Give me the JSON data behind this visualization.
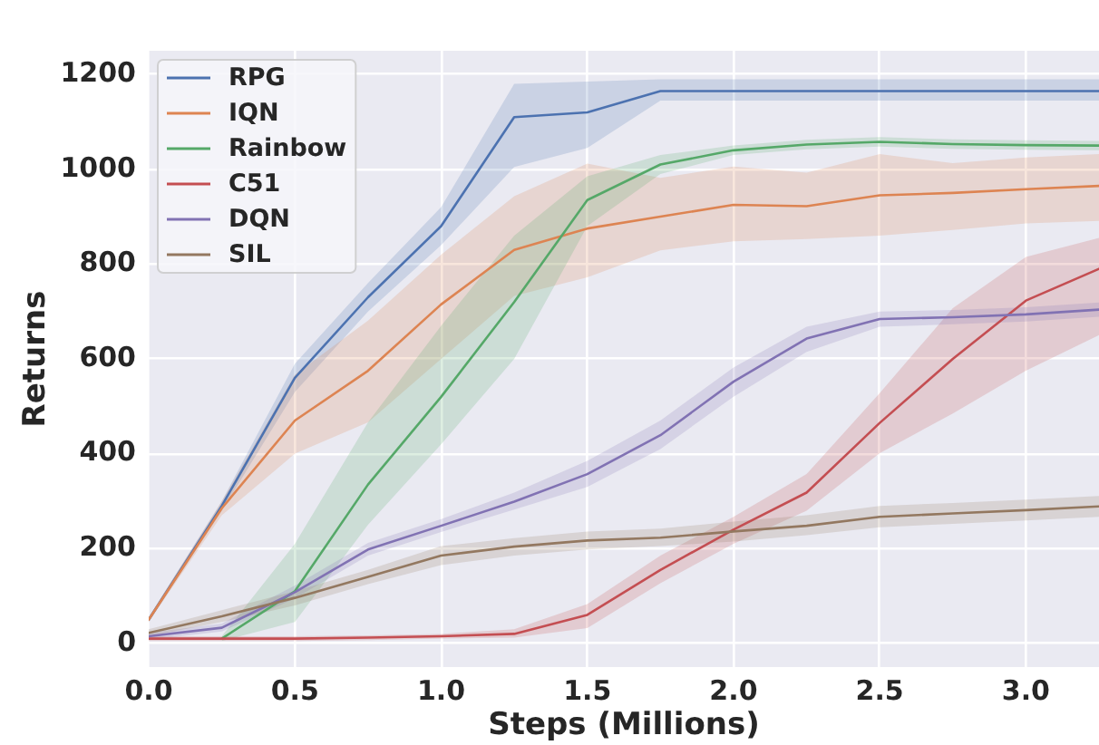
{
  "chart_data": {
    "type": "line",
    "xlabel": "Steps (Millions)",
    "ylabel": "Returns",
    "x": [
      0,
      0.25,
      0.5,
      0.75,
      1,
      1.25,
      1.5,
      1.75,
      2,
      2.25,
      2.5,
      2.75,
      3,
      3.25
    ],
    "xlim": [
      0,
      3.25
    ],
    "xticks": [
      {
        "value": 0,
        "label": "0.0"
      },
      {
        "value": 0.5,
        "label": "0.5"
      },
      {
        "value": 1,
        "label": "1.0"
      },
      {
        "value": 1.5,
        "label": "1.5"
      },
      {
        "value": 2,
        "label": "2.0"
      },
      {
        "value": 2.5,
        "label": "2.5"
      },
      {
        "value": 3,
        "label": "3.0"
      }
    ],
    "ylim": [
      -50,
      1250
    ],
    "yticks": [
      0,
      200,
      400,
      600,
      800,
      1000,
      1200
    ],
    "grid": true,
    "legend": "top left",
    "series": [
      {
        "name": "RPG",
        "color": "#4c72b0",
        "values": [
          50,
          290,
          560,
          730,
          880,
          1110,
          1120,
          1165,
          1165,
          1165,
          1165,
          1165,
          1165,
          1165
        ],
        "lower": [
          45,
          280,
          530,
          700,
          840,
          1005,
          1045,
          1145,
          1145,
          1145,
          1145,
          1145,
          1145,
          1145
        ],
        "upper": [
          55,
          300,
          590,
          760,
          920,
          1180,
          1185,
          1190,
          1190,
          1190,
          1190,
          1190,
          1190,
          1190
        ]
      },
      {
        "name": "IQN",
        "color": "#dd8452",
        "values": [
          50,
          285,
          470,
          575,
          715,
          830,
          875,
          900,
          925,
          922,
          945,
          950,
          958,
          965
        ],
        "lower": [
          45,
          270,
          400,
          466,
          600,
          733,
          772,
          829,
          848,
          853,
          860,
          872,
          886,
          891
        ],
        "upper": [
          55,
          300,
          567,
          681,
          820,
          943,
          1012,
          982,
          1006,
          993,
          1032,
          1013,
          1025,
          1032
        ]
      },
      {
        "name": "Rainbow",
        "color": "#55a868",
        "values": [
          null,
          10,
          110,
          335,
          520,
          720,
          935,
          1010,
          1040,
          1052,
          1058,
          1053,
          1051,
          1050
        ],
        "lower": [
          null,
          5,
          45,
          250,
          420,
          600,
          880,
          990,
          1030,
          1042,
          1048,
          1043,
          1041,
          1040
        ],
        "upper": [
          null,
          15,
          210,
          466,
          670,
          860,
          985,
          1030,
          1050,
          1062,
          1068,
          1063,
          1061,
          1060
        ]
      },
      {
        "name": "C51",
        "color": "#c44e52",
        "values": [
          10,
          10,
          10,
          12,
          15,
          20,
          60,
          155,
          240,
          318,
          465,
          600,
          723,
          790
        ],
        "lower": [
          5,
          5,
          5,
          7,
          10,
          12,
          32,
          127,
          210,
          280,
          401,
          485,
          575,
          650
        ],
        "upper": [
          15,
          15,
          15,
          17,
          20,
          30,
          83,
          185,
          267,
          357,
          528,
          707,
          815,
          855
        ]
      },
      {
        "name": "DQN",
        "color": "#8172b3",
        "values": [
          15,
          33,
          108,
          198,
          248,
          299,
          357,
          439,
          552,
          643,
          684,
          688,
          694,
          704
        ],
        "lower": [
          8,
          25,
          95,
          185,
          235,
          282,
          330,
          410,
          520,
          615,
          668,
          673,
          679,
          689
        ],
        "upper": [
          22,
          42,
          122,
          212,
          262,
          318,
          385,
          470,
          582,
          668,
          700,
          703,
          709,
          719
        ]
      },
      {
        "name": "SIL",
        "color": "#937860",
        "values": [
          22,
          57,
          96,
          140,
          185,
          204,
          217,
          223,
          236,
          248,
          267,
          274,
          281,
          289
        ],
        "lower": [
          15,
          45,
          80,
          125,
          165,
          185,
          198,
          205,
          215,
          228,
          245,
          252,
          259,
          267
        ],
        "upper": [
          30,
          70,
          110,
          155,
          205,
          222,
          236,
          242,
          257,
          270,
          290,
          296,
          303,
          311
        ]
      }
    ]
  }
}
